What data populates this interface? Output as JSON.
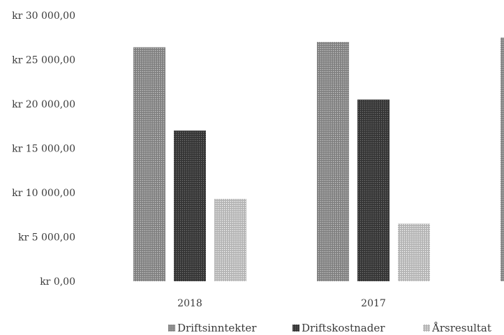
{
  "chart_data": {
    "type": "bar",
    "categories": [
      "2018",
      "2017",
      ""
    ],
    "y_tick_labels": [
      "kr 0,00",
      "kr 5 000,00",
      "kr 10 000,00",
      "kr 15 000,00",
      "kr 20 000,00",
      "kr 25 000,00",
      "kr 30 000,00"
    ],
    "y_ticks": [
      0,
      5000,
      10000,
      15000,
      20000,
      25000,
      30000
    ],
    "ylim": [
      0,
      30000
    ],
    "grid": false,
    "legend_position": "bottom",
    "series": [
      {
        "name": "Driftsinntekter",
        "values": [
          26400,
          27000,
          27500
        ],
        "color": "#8c8c8c"
      },
      {
        "name": "Driftskostnader",
        "values": [
          17000,
          20500,
          null
        ],
        "color": "#3d3d3d"
      },
      {
        "name": "Årsresultat",
        "values": [
          9300,
          6500,
          null
        ],
        "color": "#bdbdbd"
      }
    ]
  }
}
